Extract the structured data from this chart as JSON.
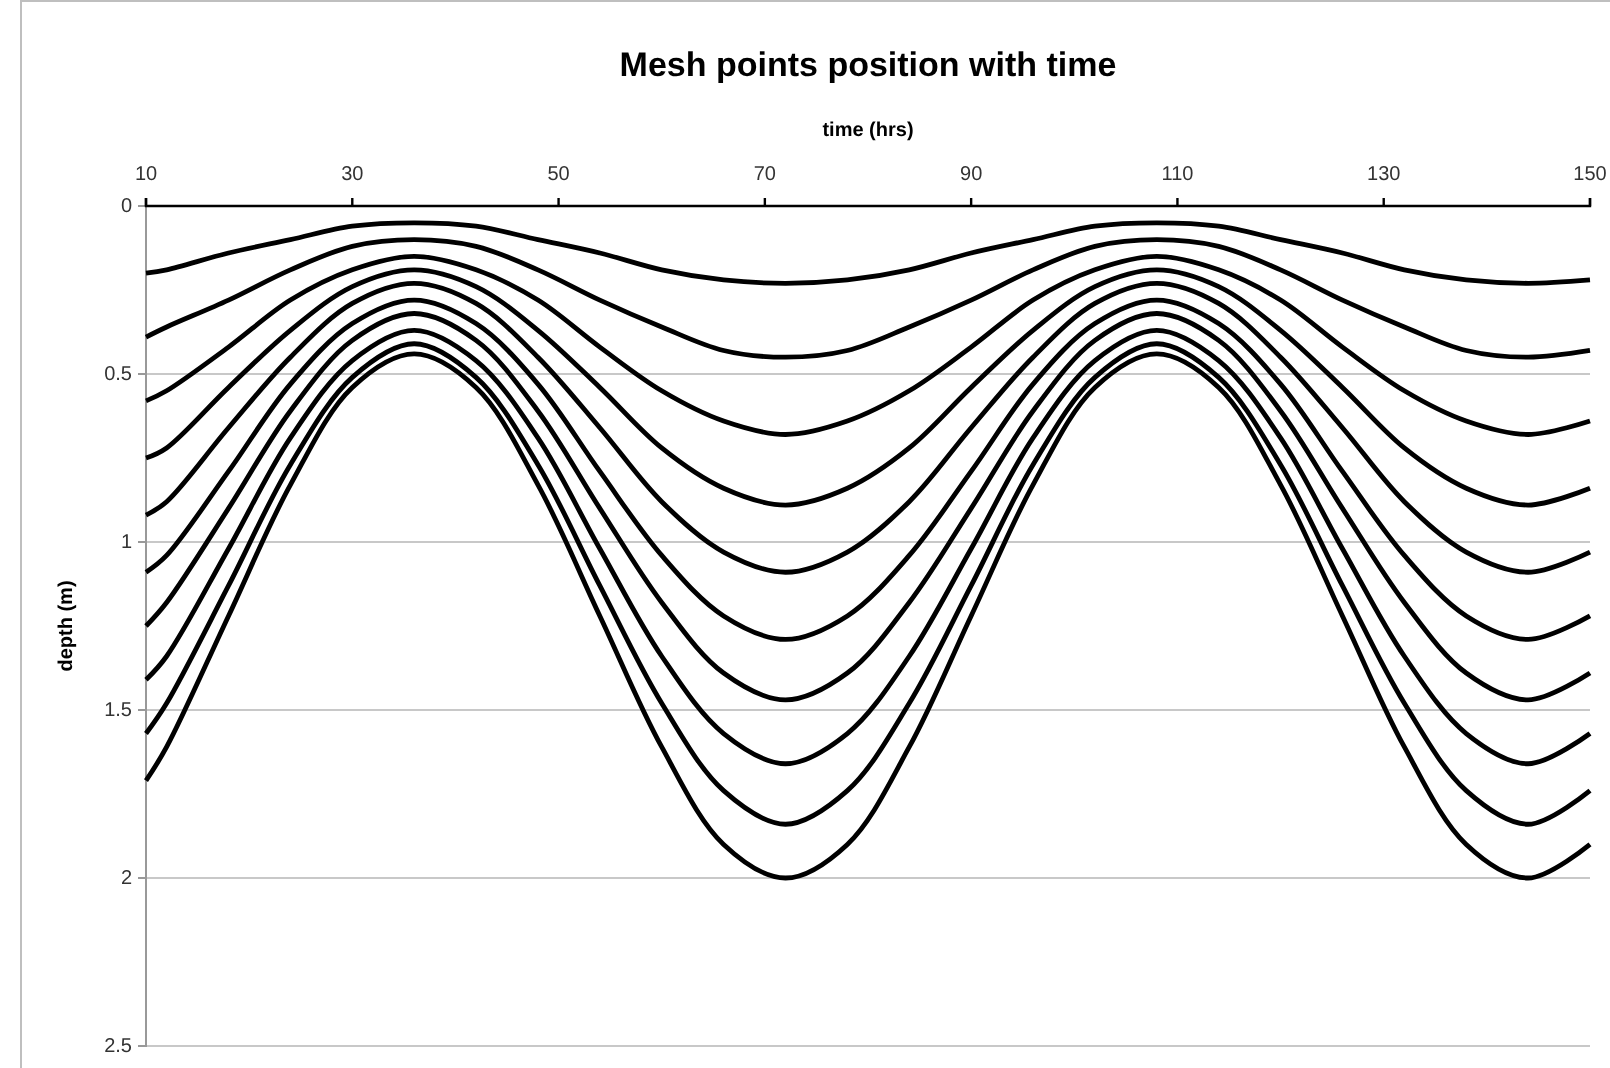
{
  "chart_data": {
    "type": "line",
    "title": "Mesh points position with time",
    "xlabel": "time (hrs)",
    "ylabel": "depth (m)",
    "x": [
      10,
      12,
      18,
      24,
      30,
      36,
      42,
      48,
      54,
      60,
      66,
      72,
      78,
      84,
      90,
      96,
      102,
      108,
      114,
      120,
      126,
      132,
      138,
      144,
      150
    ],
    "xlim": [
      10,
      150
    ],
    "xticks": [
      10,
      30,
      50,
      70,
      90,
      110,
      130,
      150
    ],
    "ylim": [
      2.5,
      0
    ],
    "yticks": [
      0,
      0.5,
      1,
      1.5,
      2,
      2.5
    ],
    "grid": "y",
    "marker": "none",
    "line_style": "solid",
    "series": [
      {
        "color": "#000000",
        "values": [
          0.2,
          0.19,
          0.14,
          0.1,
          0.06,
          0.05,
          0.06,
          0.1,
          0.14,
          0.19,
          0.22,
          0.23,
          0.22,
          0.19,
          0.14,
          0.1,
          0.06,
          0.05,
          0.06,
          0.1,
          0.14,
          0.19,
          0.22,
          0.23,
          0.22
        ]
      },
      {
        "color": "#000000",
        "values": [
          0.39,
          0.36,
          0.28,
          0.19,
          0.12,
          0.1,
          0.12,
          0.19,
          0.28,
          0.36,
          0.43,
          0.45,
          0.43,
          0.36,
          0.28,
          0.19,
          0.12,
          0.1,
          0.12,
          0.19,
          0.28,
          0.36,
          0.43,
          0.45,
          0.43
        ]
      },
      {
        "color": "#000000",
        "values": [
          0.58,
          0.55,
          0.42,
          0.28,
          0.19,
          0.15,
          0.19,
          0.28,
          0.42,
          0.55,
          0.64,
          0.68,
          0.64,
          0.55,
          0.42,
          0.28,
          0.19,
          0.15,
          0.19,
          0.28,
          0.42,
          0.55,
          0.64,
          0.68,
          0.64
        ]
      },
      {
        "color": "#000000",
        "values": [
          0.75,
          0.72,
          0.54,
          0.37,
          0.24,
          0.19,
          0.24,
          0.37,
          0.54,
          0.72,
          0.84,
          0.89,
          0.84,
          0.72,
          0.54,
          0.37,
          0.24,
          0.19,
          0.24,
          0.37,
          0.54,
          0.72,
          0.84,
          0.89,
          0.84
        ]
      },
      {
        "color": "#000000",
        "values": [
          0.92,
          0.88,
          0.66,
          0.45,
          0.29,
          0.23,
          0.29,
          0.45,
          0.66,
          0.88,
          1.03,
          1.09,
          1.03,
          0.88,
          0.66,
          0.45,
          0.29,
          0.23,
          0.29,
          0.45,
          0.66,
          0.88,
          1.03,
          1.09,
          1.03
        ]
      },
      {
        "color": "#000000",
        "values": [
          1.09,
          1.04,
          0.79,
          0.53,
          0.35,
          0.28,
          0.35,
          0.53,
          0.79,
          1.04,
          1.22,
          1.29,
          1.22,
          1.04,
          0.79,
          0.53,
          0.35,
          0.28,
          0.35,
          0.53,
          0.79,
          1.04,
          1.22,
          1.29,
          1.22
        ]
      },
      {
        "color": "#000000",
        "values": [
          1.25,
          1.18,
          0.9,
          0.61,
          0.4,
          0.32,
          0.4,
          0.61,
          0.9,
          1.18,
          1.39,
          1.47,
          1.39,
          1.18,
          0.9,
          0.61,
          0.4,
          0.32,
          0.4,
          0.61,
          0.9,
          1.18,
          1.39,
          1.47,
          1.39
        ]
      },
      {
        "color": "#000000",
        "values": [
          1.41,
          1.34,
          1.02,
          0.69,
          0.46,
          0.37,
          0.46,
          0.69,
          1.02,
          1.34,
          1.57,
          1.66,
          1.57,
          1.34,
          1.02,
          0.69,
          0.46,
          0.37,
          0.46,
          0.69,
          1.02,
          1.34,
          1.57,
          1.66,
          1.57
        ]
      },
      {
        "color": "#000000",
        "values": [
          1.57,
          1.48,
          1.13,
          0.77,
          0.51,
          0.41,
          0.51,
          0.77,
          1.13,
          1.48,
          1.74,
          1.84,
          1.74,
          1.48,
          1.13,
          0.77,
          0.51,
          0.41,
          0.51,
          0.77,
          1.13,
          1.48,
          1.74,
          1.84,
          1.74
        ]
      },
      {
        "color": "#000000",
        "values": [
          1.71,
          1.61,
          1.22,
          0.83,
          0.54,
          0.44,
          0.54,
          0.83,
          1.22,
          1.61,
          1.9,
          2.0,
          1.9,
          1.61,
          1.22,
          0.83,
          0.54,
          0.44,
          0.54,
          0.83,
          1.22,
          1.61,
          1.9,
          2.0,
          1.9
        ]
      }
    ]
  }
}
